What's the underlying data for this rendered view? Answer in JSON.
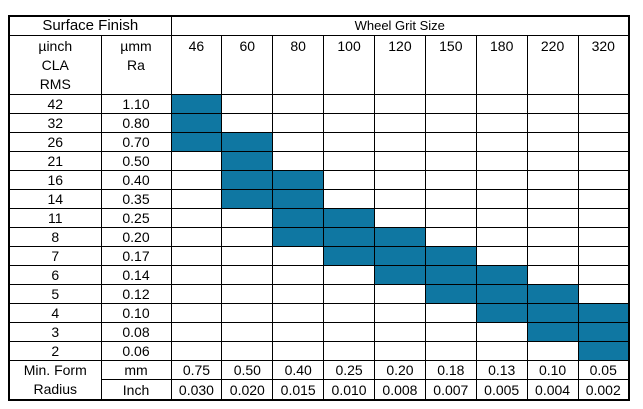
{
  "chart_data": {
    "type": "table",
    "header": {
      "surface_finish": "Surface Finish",
      "wheel_grit_size": "Wheel Grit Size",
      "uinch_lines": [
        "µinch",
        "CLA",
        "RMS"
      ],
      "umm_lines": [
        "µmm",
        "Ra"
      ]
    },
    "grit_columns": [
      "46",
      "60",
      "80",
      "100",
      "120",
      "150",
      "180",
      "220",
      "320"
    ],
    "rows": [
      {
        "uinch": "42",
        "umm": "1.10",
        "filled_grits": [
          "46"
        ]
      },
      {
        "uinch": "32",
        "umm": "0.80",
        "filled_grits": [
          "46"
        ]
      },
      {
        "uinch": "26",
        "umm": "0.70",
        "filled_grits": [
          "46",
          "60"
        ]
      },
      {
        "uinch": "21",
        "umm": "0.50",
        "filled_grits": [
          "60"
        ]
      },
      {
        "uinch": "16",
        "umm": "0.40",
        "filled_grits": [
          "60",
          "80"
        ]
      },
      {
        "uinch": "14",
        "umm": "0.35",
        "filled_grits": [
          "60",
          "80"
        ]
      },
      {
        "uinch": "11",
        "umm": "0.25",
        "filled_grits": [
          "80",
          "100"
        ]
      },
      {
        "uinch": "8",
        "umm": "0.20",
        "filled_grits": [
          "80",
          "100",
          "120"
        ]
      },
      {
        "uinch": "7",
        "umm": "0.17",
        "filled_grits": [
          "100",
          "120",
          "150"
        ]
      },
      {
        "uinch": "6",
        "umm": "0.14",
        "filled_grits": [
          "120",
          "150",
          "180"
        ]
      },
      {
        "uinch": "5",
        "umm": "0.12",
        "filled_grits": [
          "150",
          "180",
          "220"
        ]
      },
      {
        "uinch": "4",
        "umm": "0.10",
        "filled_grits": [
          "180",
          "220",
          "320"
        ]
      },
      {
        "uinch": "3",
        "umm": "0.08",
        "filled_grits": [
          "220",
          "320"
        ]
      },
      {
        "uinch": "2",
        "umm": "0.06",
        "filled_grits": [
          "320"
        ]
      }
    ],
    "min_form_radius": {
      "label_lines": [
        "Min. Form",
        "Radius"
      ],
      "mm_label": "mm",
      "inch_label": "Inch",
      "mm_values": [
        "0.75",
        "0.50",
        "0.40",
        "0.25",
        "0.20",
        "0.18",
        "0.13",
        "0.10",
        "0.05"
      ],
      "inch_values": [
        "0.030",
        "0.020",
        "0.015",
        "0.010",
        "0.008",
        "0.007",
        "0.005",
        "0.004",
        "0.002"
      ]
    },
    "fill_color": "#0F77A2",
    "grid_color": "#000000",
    "layout": {
      "grid": true,
      "legend": false
    }
  }
}
